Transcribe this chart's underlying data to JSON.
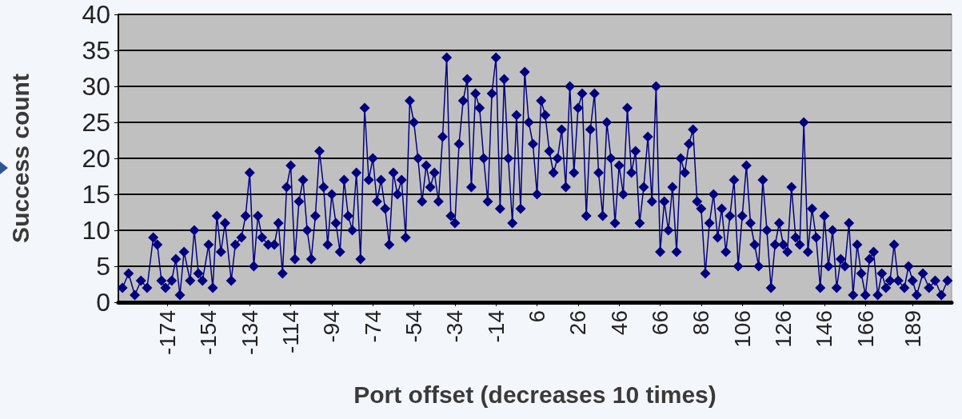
{
  "chart_data": {
    "type": "line",
    "xlabel": "Port offset (decreases 10 times)",
    "ylabel": "Success count",
    "xlim": [
      -198,
      208
    ],
    "xticks": [
      -174,
      -154,
      -134,
      -114,
      -94,
      -74,
      -54,
      -34,
      -14,
      6,
      26,
      46,
      66,
      86,
      106,
      126,
      146,
      166,
      189
    ],
    "ylim": [
      0,
      40
    ],
    "yticks": [
      0,
      5,
      10,
      15,
      20,
      25,
      30,
      35,
      40
    ],
    "grid": "y",
    "marker": "diamond",
    "line_style": "solid",
    "series": [
      {
        "color": "#000080",
        "x": [
          -196,
          -193,
          -190,
          -187,
          -184,
          -181,
          -179,
          -177,
          -175,
          -172,
          -170,
          -168,
          -166,
          -163,
          -161,
          -159,
          -157,
          -154,
          -152,
          -150,
          -148,
          -146,
          -143,
          -141,
          -138,
          -136,
          -134,
          -132,
          -130,
          -128,
          -125,
          -122,
          -120,
          -118,
          -116,
          -114,
          -112,
          -110,
          -108,
          -106,
          -104,
          -102,
          -100,
          -98,
          -96,
          -94,
          -92,
          -90,
          -88,
          -86,
          -84,
          -82,
          -80,
          -78,
          -76,
          -74,
          -72,
          -70,
          -68,
          -66,
          -64,
          -62,
          -60,
          -58,
          -56,
          -54,
          -52,
          -50,
          -48,
          -46,
          -44,
          -42,
          -40,
          -38,
          -36,
          -34,
          -32,
          -30,
          -28,
          -26,
          -24,
          -22,
          -20,
          -18,
          -16,
          -14,
          -12,
          -10,
          -8,
          -6,
          -4,
          -2,
          0,
          2,
          4,
          6,
          8,
          10,
          12,
          14,
          16,
          18,
          20,
          22,
          24,
          26,
          28,
          30,
          32,
          34,
          36,
          38,
          40,
          42,
          44,
          46,
          48,
          50,
          52,
          54,
          56,
          58,
          60,
          62,
          64,
          66,
          68,
          70,
          72,
          74,
          76,
          78,
          80,
          82,
          84,
          86,
          88,
          90,
          92,
          94,
          96,
          98,
          100,
          102,
          104,
          106,
          108,
          110,
          112,
          114,
          116,
          118,
          120,
          122,
          124,
          126,
          128,
          130,
          132,
          134,
          136,
          138,
          140,
          142,
          144,
          146,
          148,
          150,
          152,
          154,
          156,
          158,
          160,
          162,
          164,
          166,
          168,
          170,
          172,
          174,
          176,
          178,
          180,
          182,
          185,
          187,
          189,
          191,
          194,
          197,
          200,
          203,
          206
        ],
        "values": [
          2,
          4,
          1,
          3,
          2,
          9,
          8,
          3,
          2,
          3,
          6,
          1,
          7,
          3,
          10,
          4,
          3,
          8,
          2,
          12,
          7,
          11,
          3,
          8,
          9,
          12,
          18,
          5,
          12,
          9,
          8,
          8,
          11,
          4,
          16,
          19,
          6,
          14,
          17,
          10,
          6,
          12,
          21,
          16,
          8,
          15,
          11,
          7,
          17,
          12,
          10,
          18,
          6,
          27,
          17,
          20,
          14,
          17,
          13,
          8,
          18,
          15,
          17,
          9,
          28,
          25,
          20,
          14,
          19,
          16,
          18,
          14,
          23,
          34,
          12,
          11,
          22,
          28,
          31,
          16,
          29,
          27,
          20,
          14,
          29,
          34,
          13,
          31,
          20,
          11,
          26,
          13,
          32,
          25,
          22,
          15,
          28,
          26,
          21,
          18,
          20,
          24,
          16,
          30,
          18,
          27,
          29,
          12,
          24,
          29,
          18,
          12,
          25,
          20,
          11,
          19,
          15,
          27,
          18,
          21,
          11,
          16,
          23,
          14,
          30,
          7,
          14,
          10,
          16,
          7,
          20,
          18,
          22,
          24,
          14,
          13,
          4,
          11,
          15,
          9,
          13,
          7,
          12,
          17,
          5,
          12,
          19,
          11,
          8,
          5,
          17,
          10,
          2,
          8,
          11,
          8,
          7,
          16,
          9,
          8,
          25,
          7,
          13,
          9,
          2,
          12,
          5,
          10,
          2,
          6,
          5,
          11,
          1,
          8,
          4,
          1,
          6,
          7,
          1,
          4,
          2,
          3,
          8,
          3,
          2,
          5,
          3,
          1,
          4,
          2,
          3,
          1,
          3
        ]
      }
    ]
  }
}
